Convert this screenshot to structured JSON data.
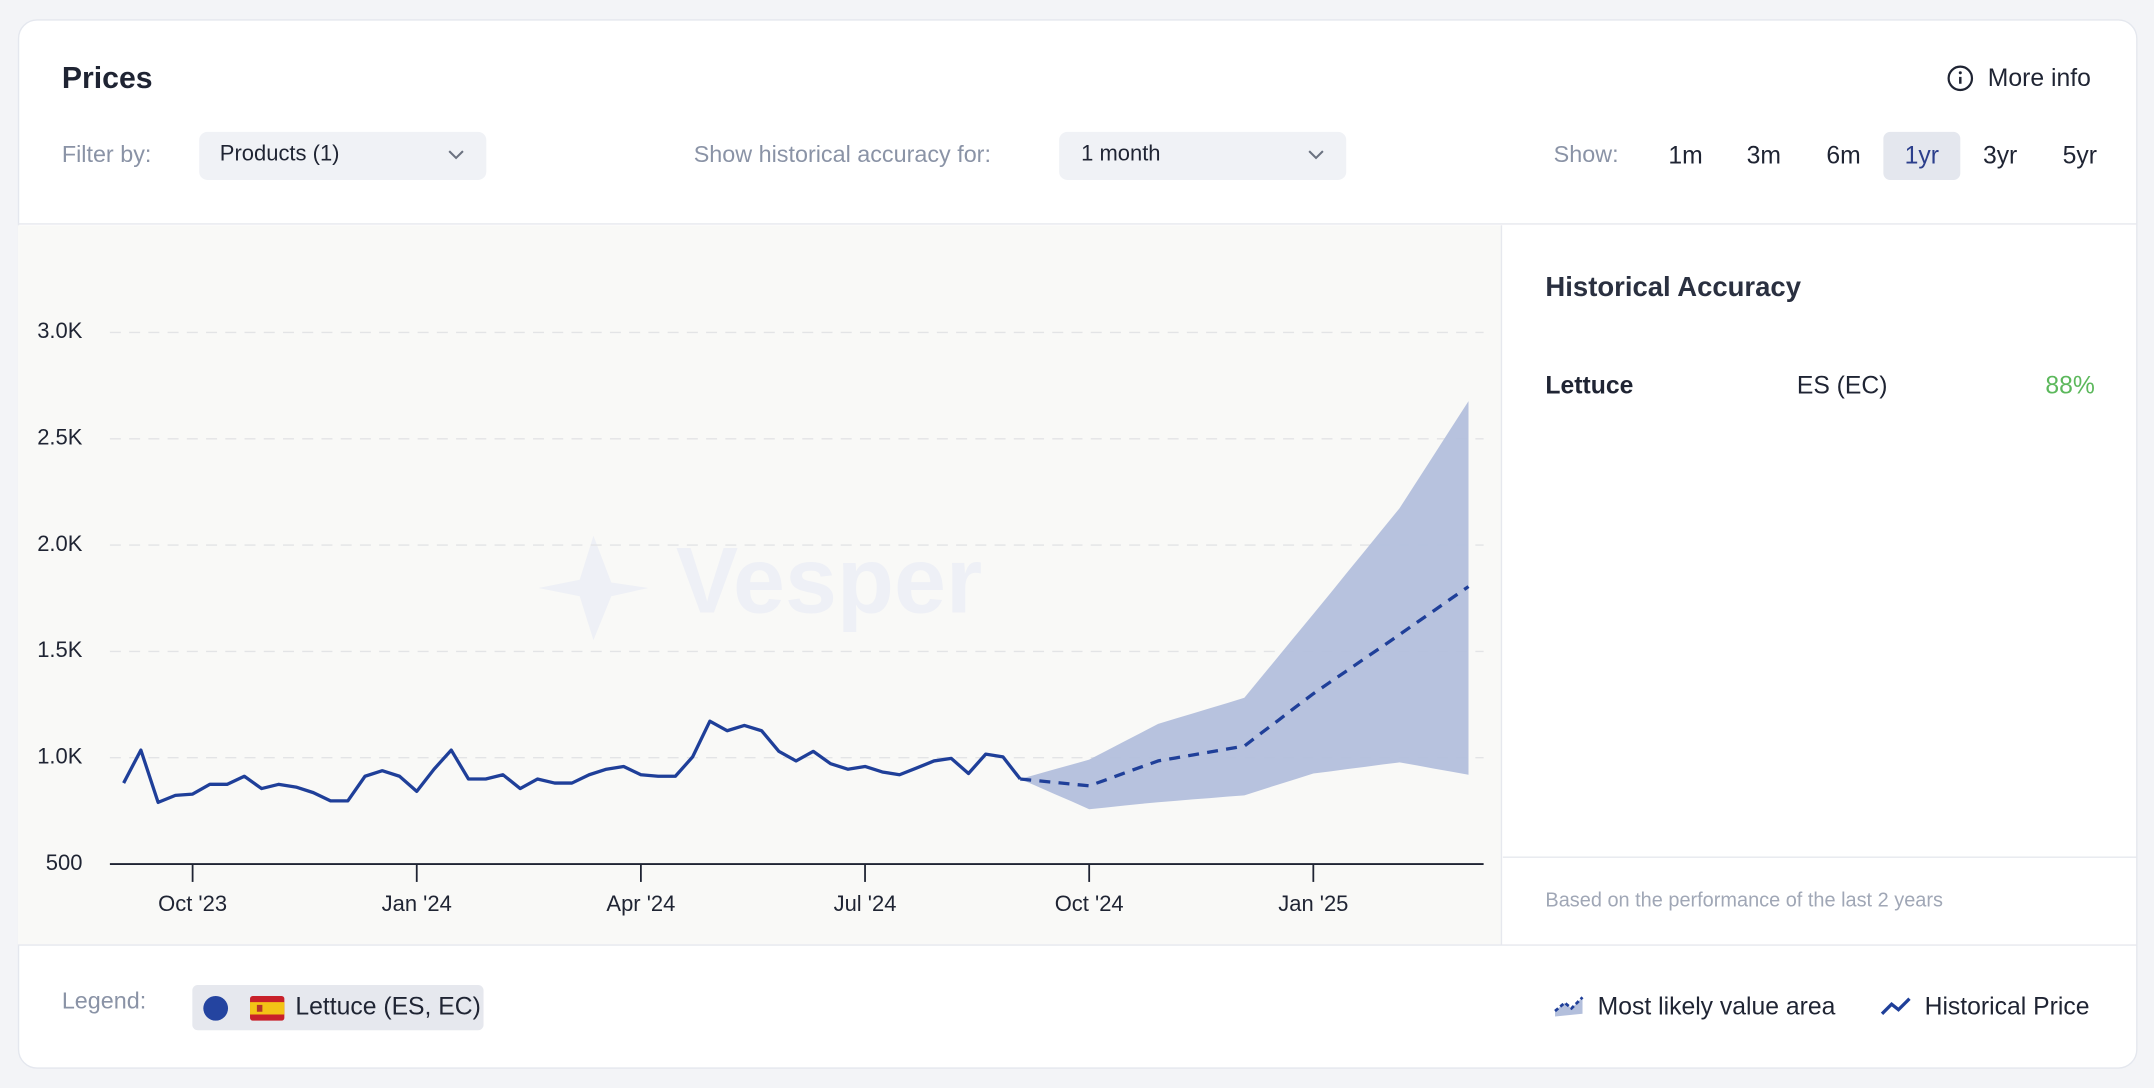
{
  "header": {
    "title": "Prices",
    "more_info": "More info"
  },
  "filters": {
    "filter_label": "Filter by:",
    "products": "Products (1)",
    "accuracy_label": "Show historical accuracy for:",
    "accuracy": "1 month",
    "show_label": "Show:",
    "ranges": [
      "1m",
      "3m",
      "6m",
      "1yr",
      "3yr",
      "5yr"
    ],
    "selected_range": 3
  },
  "accuracy_panel": {
    "title": "Historical Accuracy",
    "rows": [
      {
        "product": "Lettuce",
        "origin": "ES (EC)",
        "accuracy": "88%"
      }
    ],
    "footnote": "Based on the performance of the last 2 years"
  },
  "legend": {
    "label": "Legend:",
    "item": "Lettuce (ES, EC)"
  },
  "watermark": "Vesper",
  "chart_data": {
    "type": "line",
    "categories": [
      null,
      null,
      null,
      null,
      "Oct '23",
      null,
      null,
      null,
      null,
      null,
      null,
      null,
      null,
      null,
      null,
      null,
      null,
      "Jan '24",
      null,
      null,
      null,
      null,
      null,
      null,
      null,
      null,
      null,
      null,
      null,
      null,
      "Apr '24",
      null,
      null,
      null,
      null,
      null,
      null,
      null,
      null,
      null,
      null,
      null,
      null,
      "Jul '24",
      null,
      null,
      null,
      null,
      null,
      null,
      null,
      null,
      null,
      null,
      null,
      null,
      "Oct '24",
      null,
      null,
      null,
      null,
      null,
      null,
      null,
      null,
      null,
      null,
      null,
      null,
      "Jan '25",
      null,
      null,
      null,
      null,
      null,
      null,
      null,
      null,
      null
    ],
    "ylim": [
      500,
      3000
    ],
    "yticks": [
      500,
      {
        "value": 1000,
        "label": "1.0K"
      },
      {
        "value": 1500,
        "label": "1.5K"
      },
      {
        "value": 2000,
        "label": "2.0K"
      },
      {
        "value": 2500,
        "label": "2.5K"
      },
      {
        "value": 3000,
        "label": "3.0K"
      }
    ],
    "grid": true,
    "series": [
      {
        "name": "Most likely value area",
        "color": "#b3bfdc",
        "lower": [
          null,
          null,
          null,
          null,
          null,
          null,
          null,
          null,
          null,
          null,
          null,
          null,
          null,
          null,
          null,
          null,
          null,
          null,
          null,
          null,
          null,
          null,
          null,
          null,
          null,
          null,
          null,
          null,
          null,
          null,
          null,
          null,
          null,
          null,
          null,
          null,
          null,
          null,
          null,
          null,
          null,
          null,
          null,
          null,
          null,
          null,
          null,
          null,
          null,
          null,
          null,
          null,
          900,
          865,
          829,
          794,
          758,
          766,
          775,
          783,
          791,
          797,
          804,
          810,
          817,
          823,
          849,
          875,
          900,
          926,
          936,
          947,
          957,
          968,
          978,
          964,
          949,
          935,
          920
        ],
        "upper": [
          null,
          null,
          null,
          null,
          null,
          null,
          null,
          null,
          null,
          null,
          null,
          null,
          null,
          null,
          null,
          null,
          null,
          null,
          null,
          null,
          null,
          null,
          null,
          null,
          null,
          null,
          null,
          null,
          null,
          null,
          null,
          null,
          null,
          null,
          null,
          null,
          null,
          null,
          null,
          null,
          null,
          null,
          null,
          null,
          null,
          null,
          null,
          null,
          null,
          null,
          null,
          null,
          900,
          923,
          946,
          968,
          991,
          1033,
          1075,
          1117,
          1159,
          1184,
          1208,
          1233,
          1257,
          1282,
          1381,
          1479,
          1578,
          1676,
          1775,
          1875,
          1974,
          2074,
          2173,
          2299,
          2425,
          2551,
          2677
        ]
      },
      {
        "name": "Historical Price",
        "color": "#1f3f99",
        "values": [
          881,
          1036,
          790,
          823,
          829,
          875,
          875,
          913,
          855,
          875,
          862,
          836,
          797,
          797,
          913,
          939,
          913,
          842,
          946,
          1036,
          900,
          900,
          920,
          855,
          900,
          881,
          881,
          920,
          946,
          959,
          920,
          913,
          913,
          1004,
          1172,
          1127,
          1152,
          1127,
          1030,
          985,
          1030,
          972,
          946,
          959,
          933,
          920,
          952,
          985,
          997,
          926,
          1017,
          1004,
          900,
          null,
          null,
          null,
          null,
          null,
          null,
          null,
          null,
          null,
          null,
          null,
          null,
          null,
          null,
          null,
          null,
          null,
          null,
          null,
          null,
          null,
          null,
          null,
          null,
          null,
          null
        ]
      },
      {
        "color": "#1f3f99",
        "dashed": true,
        "values": [
          null,
          null,
          null,
          null,
          null,
          null,
          null,
          null,
          null,
          null,
          null,
          null,
          null,
          null,
          null,
          null,
          null,
          null,
          null,
          null,
          null,
          null,
          null,
          null,
          null,
          null,
          null,
          null,
          null,
          null,
          null,
          null,
          null,
          null,
          null,
          null,
          null,
          null,
          null,
          null,
          null,
          null,
          null,
          null,
          null,
          null,
          null,
          null,
          null,
          null,
          null,
          null,
          900,
          892,
          884,
          876,
          868,
          897,
          927,
          956,
          985,
          999,
          1013,
          1027,
          1041,
          1055,
          1117,
          1178,
          1240,
          1301,
          1357,
          1412,
          1468,
          1523,
          1579,
          1636,
          1692,
          1749,
          1805
        ]
      }
    ]
  }
}
